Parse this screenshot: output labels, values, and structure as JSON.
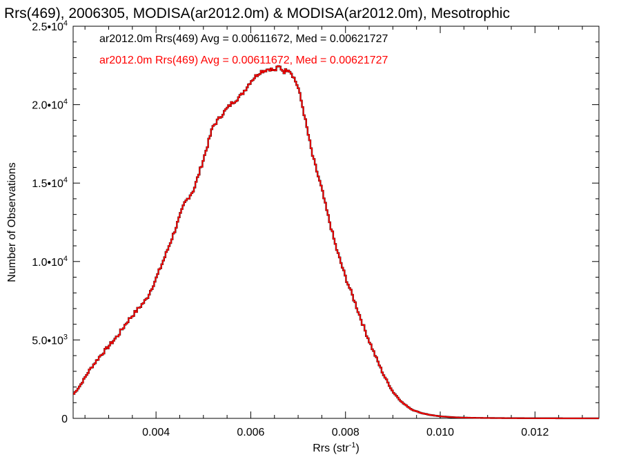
{
  "chart_data": {
    "type": "line",
    "title": "Rrs(469), 2006305, MODISA(ar2012.0m) & MODISA(ar2012.0m), Mesotrophic",
    "xlabel_main": "Rrs (str",
    "xlabel_sup": "-1",
    "xlabel_end": ")",
    "ylabel": "Number of Observations",
    "xlim": [
      0.00225,
      0.01335
    ],
    "ylim": [
      0,
      25000
    ],
    "grid": false,
    "x_ticks": [
      {
        "value": 0.004,
        "label": "0.004"
      },
      {
        "value": 0.006,
        "label": "0.006"
      },
      {
        "value": 0.008,
        "label": "0.008"
      },
      {
        "value": 0.01,
        "label": "0.010"
      },
      {
        "value": 0.012,
        "label": "0.012"
      }
    ],
    "y_ticks": [
      {
        "value": 0,
        "mant": "0",
        "exp": ""
      },
      {
        "value": 5000,
        "mant": "5.0•10",
        "exp": "3"
      },
      {
        "value": 10000,
        "mant": "1.0•10",
        "exp": "4"
      },
      {
        "value": 15000,
        "mant": "1.5•10",
        "exp": "4"
      },
      {
        "value": 20000,
        "mant": "2.0•10",
        "exp": "4"
      },
      {
        "value": 25000,
        "mant": "2.5•10",
        "exp": "4"
      }
    ],
    "legend": [
      {
        "text": "ar2012.0m Rrs(469) Avg = 0.00611672, Med = 0.00621727",
        "color": "#000000"
      },
      {
        "text": "ar2012.0m Rrs(469) Avg = 0.00611672, Med = 0.00621727",
        "color": "#ff0000"
      }
    ],
    "legend_position": "top-left",
    "series": [
      {
        "color_main": "#ff0000",
        "color_under": "#000000",
        "x": [
          0.00225,
          0.0024,
          0.0026,
          0.0028,
          0.003,
          0.0032,
          0.0034,
          0.0036,
          0.0038,
          0.004,
          0.0042,
          0.0044,
          0.0046,
          0.0048,
          0.005,
          0.0052,
          0.0054,
          0.0056,
          0.0058,
          0.006,
          0.0062,
          0.0064,
          0.0065,
          0.0066,
          0.0067,
          0.0068,
          0.0069,
          0.007,
          0.0071,
          0.0072,
          0.0073,
          0.0074,
          0.0075,
          0.0076,
          0.0077,
          0.0078,
          0.008,
          0.0082,
          0.0084,
          0.0086,
          0.0088,
          0.009,
          0.0092,
          0.0094,
          0.0096,
          0.0098,
          0.01,
          0.0102,
          0.0104,
          0.0106,
          0.0108,
          0.011,
          0.0112,
          0.0114,
          0.0116,
          0.0118,
          0.012,
          0.0122,
          0.0124,
          0.0126,
          0.0128,
          0.013,
          0.01335
        ],
        "values": [
          1500,
          2100,
          3100,
          3900,
          4600,
          5300,
          6200,
          6900,
          7600,
          8900,
          10400,
          12000,
          13700,
          14600,
          16500,
          18600,
          19400,
          20100,
          20600,
          21500,
          22100,
          22300,
          22150,
          22450,
          22100,
          22300,
          21800,
          21100,
          19800,
          18300,
          16800,
          15700,
          14600,
          13300,
          12100,
          10900,
          9000,
          7400,
          5700,
          4200,
          2800,
          1700,
          1000,
          560,
          340,
          210,
          130,
          85,
          55,
          40,
          30,
          24,
          19,
          15,
          12,
          10,
          8,
          7,
          6,
          5,
          4,
          4,
          3
        ]
      }
    ]
  }
}
